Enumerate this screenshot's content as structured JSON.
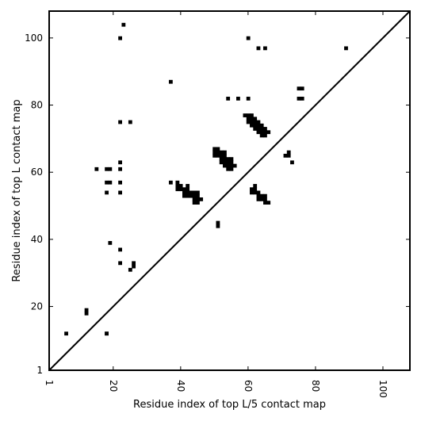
{
  "chart_data": {
    "type": "heatmap",
    "title": "",
    "xlabel": "Residue index of top L/5 contact map",
    "ylabel": "Residue index of top L contact map",
    "xlim": [
      1,
      108
    ],
    "ylim": [
      1,
      108
    ],
    "x_ticks": [
      1,
      20,
      40,
      60,
      80,
      100
    ],
    "y_ticks": [
      1,
      20,
      40,
      60,
      80,
      100
    ],
    "x_tick_labels": [
      "1",
      "20",
      "40",
      "60",
      "80",
      "100"
    ],
    "y_tick_labels": [
      "1",
      "20",
      "40",
      "60",
      "80",
      "100"
    ],
    "x_tick_label_rotation": "vertical",
    "grid": false,
    "diagonal_line": true,
    "cell_color": "#000000",
    "background_color": "#ffffff",
    "cells": [
      [
        6,
        12
      ],
      [
        12,
        18
      ],
      [
        12,
        19
      ],
      [
        18,
        12
      ],
      [
        22,
        100
      ],
      [
        23,
        104
      ],
      [
        60,
        100
      ],
      [
        63,
        97
      ],
      [
        65,
        97
      ],
      [
        89,
        97
      ],
      [
        37,
        87
      ],
      [
        75,
        85
      ],
      [
        76,
        85
      ],
      [
        75,
        82
      ],
      [
        76,
        82
      ],
      [
        54,
        82
      ],
      [
        57,
        82
      ],
      [
        60,
        82
      ],
      [
        22,
        75
      ],
      [
        25,
        75
      ],
      [
        59,
        77
      ],
      [
        60,
        77
      ],
      [
        61,
        77
      ],
      [
        60,
        76
      ],
      [
        61,
        76
      ],
      [
        62,
        76
      ],
      [
        60,
        75
      ],
      [
        61,
        75
      ],
      [
        62,
        75
      ],
      [
        63,
        75
      ],
      [
        61,
        74
      ],
      [
        62,
        74
      ],
      [
        63,
        74
      ],
      [
        64,
        74
      ],
      [
        62,
        73
      ],
      [
        63,
        73
      ],
      [
        64,
        73
      ],
      [
        65,
        73
      ],
      [
        63,
        72
      ],
      [
        64,
        72
      ],
      [
        65,
        72
      ],
      [
        66,
        72
      ],
      [
        64,
        71
      ],
      [
        65,
        71
      ],
      [
        50,
        67
      ],
      [
        51,
        67
      ],
      [
        50,
        66
      ],
      [
        51,
        66
      ],
      [
        52,
        66
      ],
      [
        53,
        66
      ],
      [
        72,
        66
      ],
      [
        50,
        65
      ],
      [
        51,
        65
      ],
      [
        52,
        65
      ],
      [
        53,
        65
      ],
      [
        71,
        65
      ],
      [
        72,
        65
      ],
      [
        52,
        64
      ],
      [
        53,
        64
      ],
      [
        54,
        64
      ],
      [
        55,
        64
      ],
      [
        52,
        63
      ],
      [
        53,
        63
      ],
      [
        54,
        63
      ],
      [
        55,
        63
      ],
      [
        73,
        63
      ],
      [
        53,
        62
      ],
      [
        54,
        62
      ],
      [
        55,
        62
      ],
      [
        56,
        62
      ],
      [
        54,
        61
      ],
      [
        55,
        61
      ],
      [
        22,
        63
      ],
      [
        15,
        61
      ],
      [
        18,
        61
      ],
      [
        19,
        61
      ],
      [
        22,
        61
      ],
      [
        18,
        57
      ],
      [
        19,
        57
      ],
      [
        22,
        57
      ],
      [
        37,
        57
      ],
      [
        39,
        57
      ],
      [
        39,
        56
      ],
      [
        40,
        56
      ],
      [
        42,
        56
      ],
      [
        39,
        55
      ],
      [
        40,
        55
      ],
      [
        41,
        55
      ],
      [
        42,
        55
      ],
      [
        41,
        54
      ],
      [
        42,
        54
      ],
      [
        43,
        54
      ],
      [
        44,
        54
      ],
      [
        45,
        54
      ],
      [
        41,
        53
      ],
      [
        42,
        53
      ],
      [
        43,
        53
      ],
      [
        44,
        53
      ],
      [
        45,
        53
      ],
      [
        44,
        52
      ],
      [
        45,
        52
      ],
      [
        46,
        52
      ],
      [
        44,
        51
      ],
      [
        45,
        51
      ],
      [
        18,
        54
      ],
      [
        22,
        54
      ],
      [
        62,
        56
      ],
      [
        61,
        55
      ],
      [
        62,
        55
      ],
      [
        61,
        54
      ],
      [
        62,
        54
      ],
      [
        63,
        54
      ],
      [
        63,
        53
      ],
      [
        64,
        53
      ],
      [
        65,
        53
      ],
      [
        63,
        52
      ],
      [
        64,
        52
      ],
      [
        65,
        52
      ],
      [
        65,
        51
      ],
      [
        66,
        51
      ],
      [
        51,
        45
      ],
      [
        51,
        44
      ],
      [
        19,
        39
      ],
      [
        22,
        37
      ],
      [
        22,
        33
      ],
      [
        26,
        33
      ],
      [
        26,
        32
      ],
      [
        25,
        31
      ],
      [
        18,
        12
      ]
    ]
  }
}
